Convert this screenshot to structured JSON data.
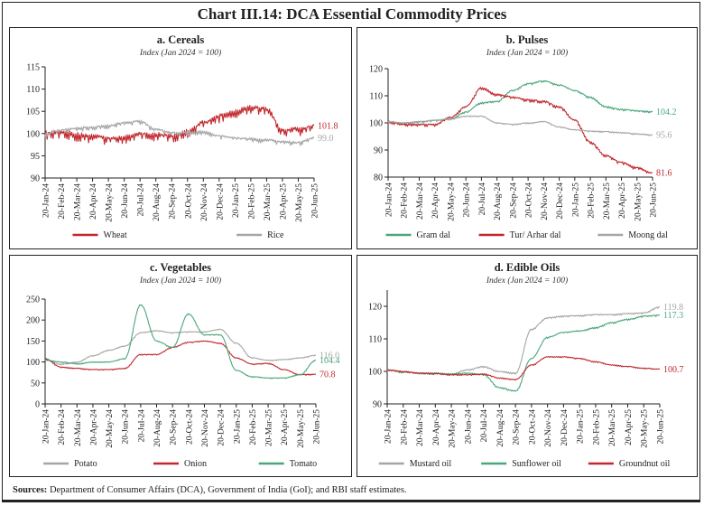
{
  "title": "Chart III.14: DCA Essential Commodity Prices",
  "sources": {
    "label": "Sources:",
    "text": "Department of Consumer Affairs (DCA), Government of India (GoI); and RBI staff estimates."
  },
  "colors": {
    "red": "#c1272d",
    "grey": "#a6a6a6",
    "green": "#4aa77a"
  },
  "chart_data": [
    {
      "id": "a",
      "type": "line",
      "title": "a. Cereals",
      "subtitle": "Index (Jan 2024 = 100)",
      "xlabel": "",
      "ylabel": "",
      "ylim": [
        90,
        115
      ],
      "yticks": [
        90,
        95,
        100,
        105,
        110,
        115
      ],
      "grid": false,
      "x": [
        "20-Jan-24",
        "20-Feb-24",
        "20-Mar-24",
        "20-Apr-24",
        "20-May-24",
        "20-Jun-24",
        "20-Jul-24",
        "20-Aug-24",
        "20-Sep-24",
        "20-Oct-24",
        "20-Nov-24",
        "20-Dec-24",
        "20-Jan-25",
        "20-Feb-25",
        "20-Mar-25",
        "20-Apr-25",
        "20-May-25",
        "20-Jun-25"
      ],
      "legend_position": "bottom",
      "series": [
        {
          "name": "Wheat",
          "color": "#c1272d",
          "noise": 1.6,
          "end_label": "101.8",
          "values": [
            100.2,
            100.5,
            99.8,
            99.5,
            99.0,
            99.2,
            100.0,
            99.8,
            99.5,
            100.5,
            102.5,
            104.0,
            105.0,
            106.0,
            105.5,
            100.8,
            101.0,
            101.8
          ]
        },
        {
          "name": "Rice",
          "color": "#a6a6a6",
          "noise": 0.8,
          "end_label": "99.0",
          "values": [
            100.0,
            100.8,
            101.2,
            101.5,
            101.8,
            102.5,
            102.8,
            101.0,
            100.2,
            100.3,
            100.5,
            99.5,
            99.0,
            98.8,
            98.6,
            98.2,
            98.0,
            99.0
          ]
        }
      ]
    },
    {
      "id": "b",
      "type": "line",
      "title": "b. Pulses",
      "subtitle": "Index (Jan 2024 = 100)",
      "xlabel": "",
      "ylabel": "",
      "ylim": [
        80,
        120
      ],
      "yticks": [
        80,
        90,
        100,
        110,
        120
      ],
      "grid": false,
      "x": [
        "20-Jan-24",
        "20-Feb-24",
        "20-Mar-24",
        "20-Apr-24",
        "20-May-24",
        "20-Jun-24",
        "20-Jul-24",
        "20-Aug-24",
        "20-Sep-24",
        "20-Oct-24",
        "20-Nov-24",
        "20-Dec-24",
        "20-Jan-25",
        "20-Feb-25",
        "20-Mar-25",
        "20-Apr-25",
        "20-May-25",
        "20-Jun-25"
      ],
      "legend_position": "bottom",
      "series": [
        {
          "name": "Gram dal",
          "color": "#4aa77a",
          "noise": 0.6,
          "end_label": "104.2",
          "values": [
            100.5,
            100.0,
            100.5,
            101.0,
            101.5,
            104.0,
            107.5,
            108.0,
            112.0,
            114.5,
            115.5,
            114.0,
            112.0,
            109.5,
            106.0,
            105.0,
            104.5,
            104.2
          ]
        },
        {
          "name": "Tur/ Arhar dal",
          "color": "#c1272d",
          "noise": 0.9,
          "end_label": "81.6",
          "values": [
            100.5,
            99.5,
            99.5,
            99.5,
            102.0,
            106.0,
            113.0,
            110.5,
            109.5,
            108.5,
            108.0,
            106.0,
            101.0,
            93.0,
            88.0,
            85.5,
            83.5,
            81.6
          ]
        },
        {
          "name": "Moong dal",
          "color": "#a6a6a6",
          "noise": 0.4,
          "end_label": "95.6",
          "values": [
            100.5,
            100.0,
            100.5,
            101.0,
            101.5,
            102.5,
            102.5,
            100.0,
            99.5,
            100.0,
            100.5,
            98.5,
            97.5,
            97.0,
            96.8,
            96.5,
            96.0,
            95.6
          ]
        }
      ]
    },
    {
      "id": "c",
      "type": "line",
      "title": "c. Vegetables",
      "subtitle": "Index (Jan 2024 = 100)",
      "xlabel": "",
      "ylabel": "",
      "ylim": [
        0,
        250
      ],
      "yticks": [
        0,
        50,
        100,
        150,
        200,
        250
      ],
      "grid": false,
      "x": [
        "20-Jan-24",
        "20-Feb-24",
        "20-Mar-24",
        "20-Apr-24",
        "20-May-24",
        "20-Jun-24",
        "20-Jul-24",
        "20-Aug-24",
        "20-Sep-24",
        "20-Oct-24",
        "20-Nov-24",
        "20-Dec-24",
        "20-Jan-25",
        "20-Feb-25",
        "20-Mar-25",
        "20-Apr-25",
        "20-May-25",
        "20-Jun-25"
      ],
      "legend_position": "bottom",
      "series": [
        {
          "name": "Potato",
          "color": "#a6a6a6",
          "noise": 2,
          "end_label": "116.0",
          "values": [
            105,
            95,
            100,
            115,
            128,
            138,
            170,
            175,
            170,
            172,
            172,
            178,
            145,
            110,
            104,
            106,
            110,
            116
          ]
        },
        {
          "name": "Onion",
          "color": "#c1272d",
          "noise": 2,
          "end_label": "70.8",
          "values": [
            108,
            88,
            85,
            82,
            82,
            85,
            118,
            118,
            135,
            147,
            150,
            145,
            110,
            95,
            97,
            82,
            70,
            70.8
          ]
        },
        {
          "name": "Tomato",
          "color": "#4aa77a",
          "noise": 2,
          "end_label": "104.4",
          "values": [
            105,
            100,
            96,
            100,
            100,
            108,
            237,
            150,
            135,
            215,
            165,
            165,
            80,
            65,
            62,
            62,
            70,
            104.4
          ]
        }
      ]
    },
    {
      "id": "d",
      "type": "line",
      "title": "d. Edible Oils",
      "subtitle": "Index (Jan 2024 = 100)",
      "xlabel": "",
      "ylabel": "",
      "ylim": [
        90,
        125
      ],
      "yticks": [
        90,
        100,
        110,
        120
      ],
      "grid": false,
      "x": [
        "20-Jan-24",
        "20-Feb-24",
        "20-Mar-24",
        "20-Apr-24",
        "20-May-24",
        "20-Jun-24",
        "20-Jul-24",
        "20-Aug-24",
        "20-Sep-24",
        "20-Oct-24",
        "20-Nov-24",
        "20-Dec-24",
        "20-Jan-25",
        "20-Feb-25",
        "20-Mar-25",
        "20-Apr-25",
        "20-May-25",
        "20-Jun-25"
      ],
      "legend_position": "bottom",
      "series": [
        {
          "name": "Mustard oil",
          "color": "#a6a6a6",
          "noise": 0.4,
          "end_label": "119.8",
          "values": [
            100.5,
            100.0,
            99.5,
            99.5,
            99.2,
            100.5,
            101.5,
            100.0,
            99.5,
            113.0,
            116.5,
            117.0,
            117.2,
            117.5,
            117.5,
            117.8,
            118.0,
            119.8
          ]
        },
        {
          "name": "Sunflower oil",
          "color": "#4aa77a",
          "noise": 0.4,
          "end_label": "117.3",
          "values": [
            100.5,
            99.8,
            99.5,
            99.5,
            99.2,
            99.5,
            99.0,
            95.0,
            94.0,
            104.0,
            110.5,
            112.0,
            112.5,
            113.5,
            115.0,
            116.0,
            117.0,
            117.3
          ]
        },
        {
          "name": "Groundnut oil",
          "color": "#c1272d",
          "noise": 0.3,
          "end_label": "100.7",
          "values": [
            100.5,
            100.0,
            99.5,
            99.3,
            99.0,
            99.0,
            99.2,
            98.0,
            97.5,
            102.0,
            104.5,
            104.5,
            104.0,
            103.0,
            102.0,
            101.5,
            101.0,
            100.7
          ]
        }
      ]
    }
  ]
}
